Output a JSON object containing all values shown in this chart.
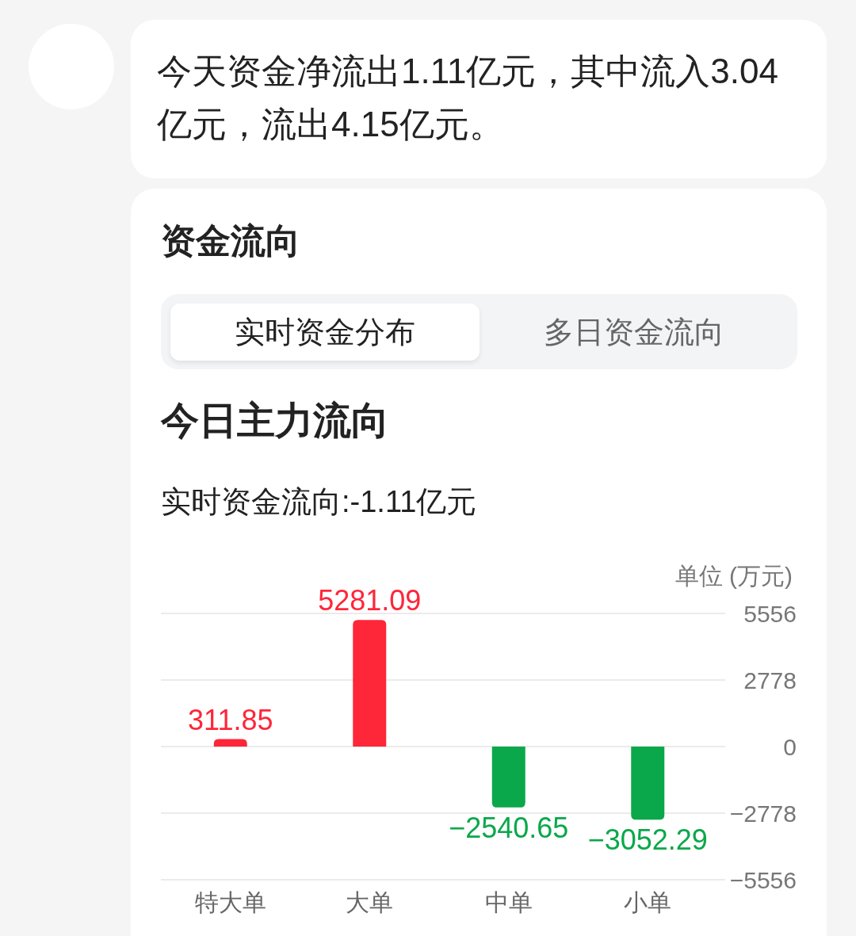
{
  "chart_data": {
    "type": "bar",
    "title": "今日主力流向",
    "subtitle": "实时资金流向:-1.11亿元",
    "ylabel": "单位 (万元)",
    "annotations": [
      "今天资金净流出1.11亿元，其中流入3.04亿元，流出4.15亿元。",
      "资金流向",
      "实时资金分布",
      "多日资金流向"
    ],
    "categories": [
      "特大单",
      "大单",
      "中单",
      "小单"
    ],
    "values": [
      311.85,
      5281.09,
      -2540.65,
      -3052.29
    ],
    "colors": [
      "#fe2639",
      "#fe2639",
      "#0aa84a",
      "#0aa84a"
    ],
    "ylim": [
      -5556,
      5556
    ],
    "yticks": [
      5556,
      2778,
      0,
      -2778,
      -5556
    ],
    "grid": "y",
    "data_labels": true
  }
}
